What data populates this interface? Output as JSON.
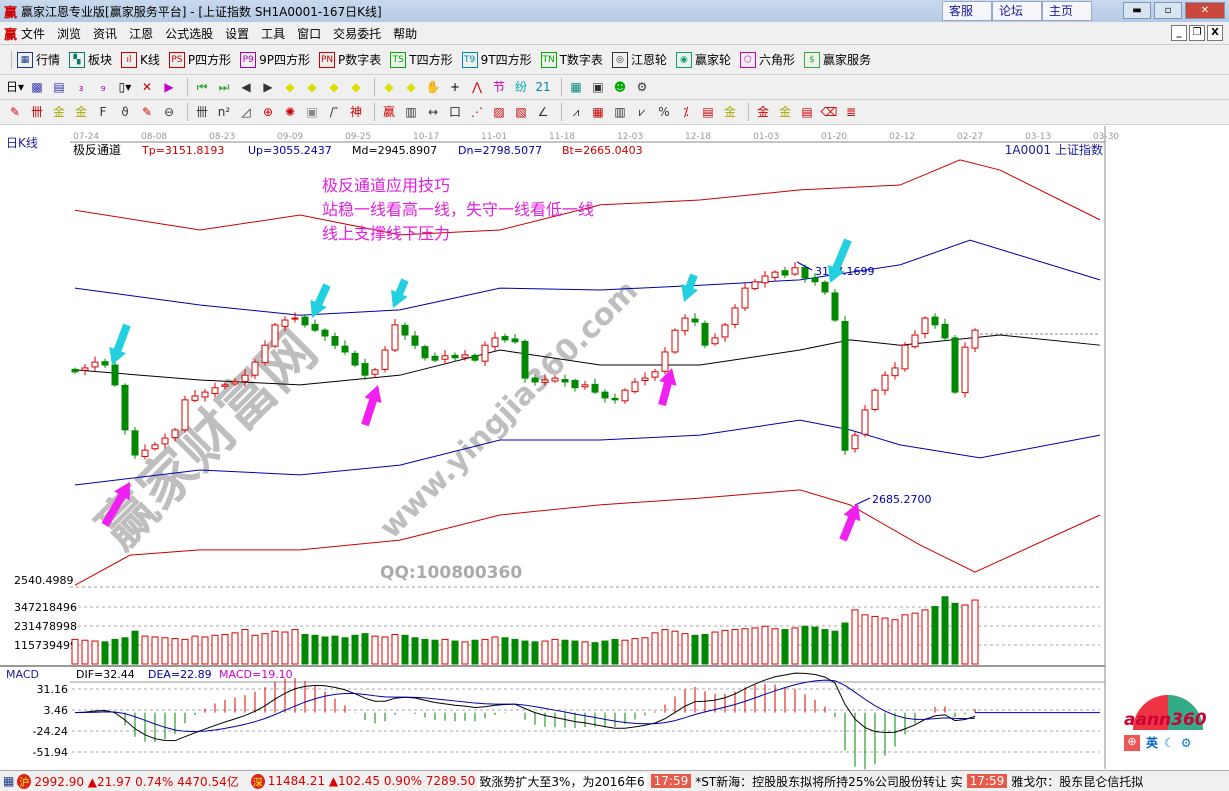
{
  "window": {
    "title": "赢家江恩专业版[赢家服务平台] - [上证指数  SH1A0001-167日K线]",
    "links": [
      "客服",
      "论坛",
      "主页"
    ],
    "logo_glyph": "赢"
  },
  "menu": [
    "文件",
    "浏览",
    "资讯",
    "江恩",
    "公式选股",
    "设置",
    "工具",
    "窗口",
    "交易委托",
    "帮助"
  ],
  "toolbar1": [
    {
      "label": "行情",
      "icon": "calendar-grid-icon",
      "glyph": "▦",
      "color": "#1a3a8a"
    },
    {
      "label": "板块",
      "icon": "blocks-icon",
      "glyph": "▚",
      "color": "#0a7a6a"
    },
    {
      "label": "K线",
      "icon": "candles-icon",
      "glyph": "ıl",
      "color": "#c00"
    },
    {
      "label": "P四方形",
      "icon": "PS",
      "glyph": "PS",
      "color": "#c00"
    },
    {
      "label": "9P四方形",
      "icon": "P9",
      "glyph": "P9",
      "color": "#a0a"
    },
    {
      "label": "P数字表",
      "icon": "PN",
      "glyph": "PN",
      "color": "#c00"
    },
    {
      "label": "T四方形",
      "icon": "TS",
      "glyph": "TS",
      "color": "#0a0"
    },
    {
      "label": "9T四方形",
      "icon": "T9",
      "glyph": "T9",
      "color": "#08a"
    },
    {
      "label": "T数字表",
      "icon": "TN",
      "glyph": "TN",
      "color": "#0a0"
    },
    {
      "label": "江恩轮",
      "icon": "gann-wheel-icon",
      "glyph": "◎",
      "color": "#333"
    },
    {
      "label": "赢家轮",
      "icon": "winner-wheel-icon",
      "glyph": "◉",
      "color": "#0a6"
    },
    {
      "label": "六角形",
      "icon": "hexagon-icon",
      "glyph": "⬡",
      "color": "#c0a"
    },
    {
      "label": "赢家服务",
      "icon": "dollar-icon",
      "glyph": "$",
      "color": "#3a3"
    }
  ],
  "toolbar2": [
    {
      "icon": "period-day-icon",
      "glyph": "日▾",
      "color": "#000"
    },
    {
      "icon": "chart-icon",
      "glyph": "▩",
      "color": "#33a"
    },
    {
      "icon": "notes-icon",
      "glyph": "▤",
      "color": "#33a"
    },
    {
      "icon": "indicator3-icon",
      "glyph": "₃",
      "color": "#a0a"
    },
    {
      "icon": "indicator9-icon",
      "glyph": "₉",
      "color": "#a0a"
    },
    {
      "icon": "candle-type-icon",
      "glyph": "▯▾",
      "color": "#000"
    },
    {
      "icon": "restore-rights-icon",
      "glyph": "✕",
      "color": "#c00"
    },
    {
      "icon": "flag-icon",
      "glyph": "▶",
      "color": "#c0c"
    },
    {
      "icon": "first-icon",
      "glyph": "⏮",
      "color": "#3a3"
    },
    {
      "icon": "last-icon",
      "glyph": "⏭",
      "color": "#3a3"
    },
    {
      "icon": "left-icon",
      "glyph": "◀",
      "color": "#333"
    },
    {
      "icon": "right-icon",
      "glyph": "▶",
      "color": "#333"
    },
    {
      "icon": "left-diamond-icon",
      "glyph": "◆",
      "color": "#dd0"
    },
    {
      "icon": "right-diamond-icon",
      "glyph": "◆",
      "color": "#dd0"
    },
    {
      "icon": "expand-h-icon",
      "glyph": "◆",
      "color": "#dd0"
    },
    {
      "icon": "shrink-h-icon",
      "glyph": "◆",
      "color": "#dd0"
    },
    {
      "icon": "expand-v-icon",
      "glyph": "◆",
      "color": "#dd0"
    },
    {
      "icon": "shrink-v-icon",
      "glyph": "◆",
      "color": "#dd0"
    },
    {
      "icon": "hand-icon",
      "glyph": "✋",
      "color": "#333"
    },
    {
      "icon": "crosshair-icon",
      "glyph": "+",
      "color": "#000"
    },
    {
      "icon": "line-draw-icon",
      "glyph": "⋀",
      "color": "#c00"
    },
    {
      "icon": "section-icon",
      "glyph": "节",
      "color": "#c0a"
    },
    {
      "icon": "gann-icon",
      "glyph": "纷",
      "color": "#0aa"
    },
    {
      "icon": "calendar-icon",
      "glyph": "21",
      "color": "#08a"
    },
    {
      "icon": "calculator-icon",
      "glyph": "▦",
      "color": "#088"
    },
    {
      "icon": "monitor-icon",
      "glyph": "▣",
      "color": "#333"
    },
    {
      "icon": "people-icon",
      "glyph": "☻",
      "color": "#0a0"
    },
    {
      "icon": "network-icon",
      "glyph": "⚙",
      "color": "#333"
    }
  ],
  "toolbar3": [
    {
      "icon": "pen-icon",
      "glyph": "✎",
      "color": "#c00"
    },
    {
      "icon": "grid-lines-icon",
      "glyph": "卌",
      "color": "#c00"
    },
    {
      "icon": "gold1-icon",
      "glyph": "金",
      "color": "#aa0"
    },
    {
      "icon": "gold2-icon",
      "glyph": "金",
      "color": "#aa0"
    },
    {
      "icon": "fib-icon",
      "glyph": "F",
      "color": "#333"
    },
    {
      "icon": "spiral-icon",
      "glyph": "ϑ",
      "color": "#333"
    },
    {
      "icon": "brush-icon",
      "glyph": "✎",
      "color": "#c00"
    },
    {
      "icon": "circle-icon",
      "glyph": "⊖",
      "color": "#333"
    },
    {
      "icon": "parallel-icon",
      "glyph": "卌",
      "color": "#333"
    },
    {
      "icon": "n2-icon",
      "glyph": "n²",
      "color": "#333"
    },
    {
      "icon": "triangle-icon",
      "glyph": "◿",
      "color": "#333"
    },
    {
      "icon": "target-icon",
      "glyph": "⊕",
      "color": "#c00"
    },
    {
      "icon": "web-icon",
      "glyph": "✺",
      "color": "#c00"
    },
    {
      "icon": "square-web-icon",
      "glyph": "▣",
      "color": "#888"
    },
    {
      "icon": "tick-icon",
      "glyph": "/″",
      "color": "#333"
    },
    {
      "icon": "god-icon",
      "glyph": "神",
      "color": "#c00"
    },
    {
      "icon": "win-icon",
      "glyph": "赢",
      "color": "#c00"
    },
    {
      "icon": "ruler-icon",
      "glyph": "▥",
      "color": "#333"
    },
    {
      "icon": "width-icon",
      "glyph": "↔",
      "color": "#333"
    },
    {
      "icon": "box-icon",
      "glyph": "口",
      "color": "#333"
    },
    {
      "icon": "fan-icon",
      "glyph": "⋰",
      "color": "#c00"
    },
    {
      "icon": "fan-box-icon",
      "glyph": "▨",
      "color": "#c00"
    },
    {
      "icon": "fan-box2-icon",
      "glyph": "▧",
      "color": "#c00"
    },
    {
      "icon": "angle-icon",
      "glyph": "∠",
      "color": "#333"
    },
    {
      "icon": "zigzag-icon",
      "glyph": "⩘",
      "color": "#333"
    },
    {
      "icon": "grid-icon",
      "glyph": "▦",
      "color": "#c00"
    },
    {
      "icon": "bars-icon",
      "glyph": "▥",
      "color": "#333"
    },
    {
      "icon": "vpattern-icon",
      "glyph": "⩗",
      "color": "#333"
    },
    {
      "icon": "percent-icon",
      "glyph": "%",
      "color": "#333"
    },
    {
      "icon": "ratio-icon",
      "glyph": "⁒",
      "color": "#c00"
    },
    {
      "icon": "calendar2-icon",
      "glyph": "▤",
      "color": "#c00"
    },
    {
      "icon": "gold3-icon",
      "glyph": "金",
      "color": "#aa0"
    },
    {
      "icon": "gold4-icon",
      "glyph": "金",
      "color": "#c00"
    },
    {
      "icon": "gold5-icon",
      "glyph": "金",
      "color": "#aa0"
    },
    {
      "icon": "bookmark-icon",
      "glyph": "▤",
      "color": "#c00"
    },
    {
      "icon": "erase-icon",
      "glyph": "⌫",
      "color": "#c00"
    },
    {
      "icon": "staircase-icon",
      "glyph": "≣",
      "color": "#c00"
    }
  ],
  "chart": {
    "period_label": "日K线",
    "indicator_name": "极反通道",
    "params": {
      "tp": "Tp=3151.8193",
      "up": "Up=3055.2437",
      "md": "Md=2945.8907",
      "dn": "Dn=2798.5077",
      "bt": "Bt=2665.0403"
    },
    "symbol": "1A0001  上证指数",
    "dates": [
      "07-24",
      "08-08",
      "08-23",
      "09-09",
      "09-25",
      "10-17",
      "11-01",
      "11-18",
      "12-03",
      "12-18",
      "01-03",
      "01-20",
      "02-12",
      "02-27",
      "03-13",
      "03-30"
    ],
    "annotation_lines": [
      "极反通道应用技巧",
      "站稳一线看高一线，失守一线看低一线",
      "线上支撑线下压力"
    ],
    "high_label": "3177.1699",
    "low_label": "2685.2700",
    "price_axis_label": "2540.4989",
    "watermark": {
      "brand": "赢家财富网",
      "url": "www.yingjia360.com",
      "qq": "QQ:100800360"
    }
  },
  "chart_data": {
    "type": "candlestick",
    "closes": [
      2950,
      2958,
      2970,
      2964,
      2923,
      2830,
      2778,
      2788,
      2799,
      2813,
      2830,
      2892,
      2900,
      2908,
      2917,
      2923,
      2929,
      2943,
      2970,
      3005,
      3047,
      3057,
      3061,
      3047,
      3036,
      3024,
      3005,
      2991,
      2964,
      2943,
      2954,
      2995,
      3047,
      3026,
      3005,
      2979,
      2974,
      2983,
      2979,
      2985,
      2974,
      3005,
      3020,
      3016,
      3012,
      2937,
      2929,
      2933,
      2937,
      2929,
      2917,
      2923,
      2908,
      2896,
      2892,
      2912,
      2929,
      2937,
      2950,
      2991,
      3036,
      3061,
      3053,
      3005,
      3020,
      3047,
      3082,
      3123,
      3136,
      3148,
      3156,
      3150,
      3165,
      3144,
      3136,
      3115,
      3057,
      2788,
      2819,
      2871,
      2912,
      2943,
      2958,
      3005,
      3026,
      3061,
      3047,
      3020,
      2908,
      3001,
      3036
    ],
    "channels": [
      {
        "name": "Tp",
        "color": "#cc0000",
        "x": [
          0,
          12.5,
          22.5,
          32.5,
          42.5,
          52.5,
          62.5,
          72.5,
          82.5,
          88.5,
          92.5,
          102.5
        ],
        "y": [
          3284,
          3243,
          3274,
          3233,
          3243,
          3295,
          3305,
          3326,
          3336,
          3388,
          3367,
          3264
        ]
      },
      {
        "name": "Up",
        "color": "#0000aa",
        "x": [
          0,
          12.5,
          22.5,
          32.5,
          42.5,
          52.5,
          62.5,
          72.5,
          82.5,
          89.5,
          102.5
        ],
        "y": [
          3123,
          3088,
          3067,
          3078,
          3123,
          3119,
          3129,
          3140,
          3171,
          3222,
          3140
        ]
      },
      {
        "name": "Md",
        "color": "#000000",
        "x": [
          0,
          12.5,
          22.5,
          32.5,
          42.5,
          52.5,
          62.5,
          72.5,
          77.5,
          82.5,
          92.5,
          102.5
        ],
        "y": [
          2954,
          2933,
          2923,
          2943,
          2995,
          2964,
          2964,
          2995,
          3016,
          3005,
          3026,
          3005
        ]
      },
      {
        "name": "Dn",
        "color": "#0000aa",
        "x": [
          0,
          12.5,
          22.5,
          32.5,
          42.5,
          52.5,
          62.5,
          72.5,
          77.5,
          82.5,
          90.5,
          102.5
        ],
        "y": [
          2716,
          2747,
          2737,
          2757,
          2809,
          2809,
          2819,
          2850,
          2830,
          2799,
          2772,
          2819
        ]
      },
      {
        "name": "Bt",
        "color": "#cc0000",
        "x": [
          0,
          5.5,
          12.5,
          22.5,
          32.5,
          42.5,
          52.5,
          62.5,
          72.5,
          77.5,
          84.5,
          90,
          102.5
        ],
        "y": [
          2509,
          2571,
          2582,
          2582,
          2602,
          2654,
          2675,
          2689,
          2706,
          2675,
          2592,
          2536,
          2654
        ]
      }
    ],
    "volume": {
      "ticks": [
        "347218496",
        "231478998",
        "115739499"
      ],
      "unit_values": [
        347218496,
        231478998,
        115739499
      ],
      "values_millions": [
        150,
        145,
        140,
        135,
        150,
        160,
        200,
        170,
        165,
        160,
        155,
        150,
        170,
        165,
        175,
        180,
        190,
        210,
        175,
        185,
        200,
        195,
        210,
        180,
        175,
        165,
        170,
        160,
        175,
        185,
        170,
        165,
        180,
        175,
        160,
        150,
        145,
        150,
        140,
        135,
        145,
        150,
        165,
        160,
        150,
        140,
        135,
        140,
        150,
        145,
        140,
        135,
        130,
        140,
        150,
        145,
        155,
        160,
        190,
        210,
        200,
        185,
        175,
        180,
        195,
        205,
        210,
        215,
        220,
        230,
        215,
        210,
        220,
        230,
        225,
        210,
        200,
        250,
        330,
        300,
        290,
        280,
        270,
        300,
        310,
        330,
        350,
        410,
        370,
        360,
        390
      ]
    },
    "macd": {
      "label": "MACD",
      "dif": "DIF=32.44",
      "dea": "DEA=22.89",
      "macd": "MACD=19.10",
      "ticks": [
        "31.16",
        "3.46",
        "-24.24",
        "-51.94"
      ],
      "tick_values": [
        31.16,
        3.46,
        -24.24,
        -51.94
      ]
    },
    "colors": {
      "up": "#dd0000",
      "down": "#008800"
    }
  },
  "status": {
    "sh": {
      "icon": "沪",
      "text": "2992.90 ▲21.97 0.74% 4470.54亿"
    },
    "sz": {
      "icon": "深",
      "text": "11484.21 ▲102.45 0.90% 7289.50"
    },
    "ticker1": "致涨势扩大至3%，为2016年6",
    "time1": "17:59",
    "news1": "*ST新海：控股股东拟将所持25%公司股份转让 实",
    "time2": "17:59",
    "news2": "雅戈尔：股东昆仑信托拟"
  },
  "logo": {
    "text": "aann360",
    "sub": "英"
  }
}
